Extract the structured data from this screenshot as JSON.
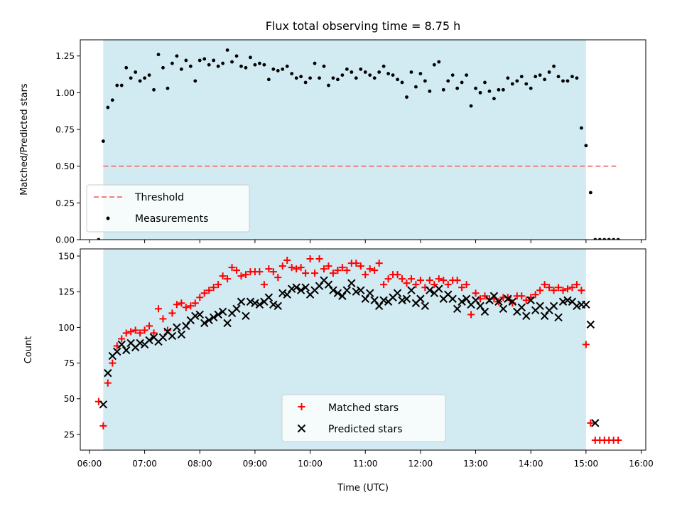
{
  "chart_data": [
    {
      "type": "scatter",
      "title": "Flux total observing time = 8.75 h",
      "xlabel": "",
      "ylabel": "Matched/Predicted stars",
      "xlim": [
        "05:50",
        "16:05"
      ],
      "ylim": [
        0,
        1.36
      ],
      "x_ticks": [
        "06:00",
        "07:00",
        "08:00",
        "09:00",
        "10:00",
        "11:00",
        "12:00",
        "13:00",
        "14:00",
        "15:00",
        "16:00"
      ],
      "y_ticks": [
        "0.00",
        "0.25",
        "0.50",
        "0.75",
        "1.00",
        "1.25"
      ],
      "shaded_span": [
        "06:15",
        "15:00"
      ],
      "shaded_color": "#add8e6",
      "legend_position": "lower-left",
      "threshold": {
        "name": "Threshold",
        "value": 0.5,
        "x_range": [
          "06:15",
          "15:35"
        ],
        "color": "#f08080",
        "style": "dashed"
      },
      "series": [
        {
          "name": "Measurements",
          "marker": "dot",
          "color": "#000000",
          "x": [
            "06:10",
            "06:15",
            "06:20",
            "06:25",
            "06:30",
            "06:35",
            "06:40",
            "06:45",
            "06:50",
            "06:55",
            "07:00",
            "07:05",
            "07:10",
            "07:15",
            "07:20",
            "07:25",
            "07:30",
            "07:35",
            "07:40",
            "07:45",
            "07:50",
            "07:55",
            "08:00",
            "08:05",
            "08:10",
            "08:15",
            "08:20",
            "08:25",
            "08:30",
            "08:35",
            "08:40",
            "08:45",
            "08:50",
            "08:55",
            "09:00",
            "09:05",
            "09:10",
            "09:15",
            "09:20",
            "09:25",
            "09:30",
            "09:35",
            "09:40",
            "09:45",
            "09:50",
            "09:55",
            "10:00",
            "10:05",
            "10:10",
            "10:15",
            "10:20",
            "10:25",
            "10:30",
            "10:35",
            "10:40",
            "10:45",
            "10:50",
            "10:55",
            "11:00",
            "11:05",
            "11:10",
            "11:15",
            "11:20",
            "11:25",
            "11:30",
            "11:35",
            "11:40",
            "11:45",
            "11:50",
            "11:55",
            "12:00",
            "12:05",
            "12:10",
            "12:15",
            "12:20",
            "12:25",
            "12:30",
            "12:35",
            "12:40",
            "12:45",
            "12:50",
            "12:55",
            "13:00",
            "13:05",
            "13:10",
            "13:15",
            "13:20",
            "13:25",
            "13:30",
            "13:35",
            "13:40",
            "13:45",
            "13:50",
            "13:55",
            "14:00",
            "14:05",
            "14:10",
            "14:15",
            "14:20",
            "14:25",
            "14:30",
            "14:35",
            "14:40",
            "14:45",
            "14:50",
            "14:55",
            "15:00",
            "15:05",
            "15:10",
            "15:15",
            "15:20",
            "15:25",
            "15:30",
            "15:35"
          ],
          "y": [
            0.0,
            0.67,
            0.9,
            0.95,
            1.05,
            1.05,
            1.17,
            1.1,
            1.14,
            1.08,
            1.1,
            1.12,
            1.02,
            1.26,
            1.17,
            1.03,
            1.2,
            1.25,
            1.16,
            1.22,
            1.18,
            1.08,
            1.22,
            1.23,
            1.19,
            1.22,
            1.18,
            1.2,
            1.29,
            1.21,
            1.25,
            1.18,
            1.17,
            1.24,
            1.19,
            1.2,
            1.19,
            1.09,
            1.16,
            1.15,
            1.16,
            1.18,
            1.13,
            1.1,
            1.11,
            1.07,
            1.1,
            1.2,
            1.1,
            1.18,
            1.05,
            1.1,
            1.09,
            1.12,
            1.16,
            1.14,
            1.1,
            1.16,
            1.14,
            1.12,
            1.1,
            1.14,
            1.18,
            1.13,
            1.12,
            1.09,
            1.07,
            0.97,
            1.14,
            1.04,
            1.13,
            1.08,
            1.01,
            1.19,
            1.21,
            1.02,
            1.08,
            1.12,
            1.03,
            1.07,
            1.12,
            0.91,
            1.03,
            1.0,
            1.07,
            1.01,
            0.96,
            1.02,
            1.02,
            1.1,
            1.06,
            1.08,
            1.11,
            1.06,
            1.03,
            1.11,
            1.12,
            1.09,
            1.14,
            1.18,
            1.11,
            1.08,
            1.08,
            1.11,
            1.1,
            0.76,
            0.64,
            0.32,
            0.0,
            0.0,
            0.0,
            0.0,
            0.0,
            0.0
          ]
        }
      ]
    },
    {
      "type": "scatter",
      "title": "",
      "xlabel": "Time (UTC)",
      "ylabel": "Count",
      "xlim": [
        "05:50",
        "16:05"
      ],
      "ylim": [
        14,
        155
      ],
      "x_ticks": [
        "06:00",
        "07:00",
        "08:00",
        "09:00",
        "10:00",
        "11:00",
        "12:00",
        "13:00",
        "14:00",
        "15:00",
        "16:00"
      ],
      "y_ticks": [
        "25",
        "50",
        "75",
        "100",
        "125",
        "150"
      ],
      "shaded_span": [
        "06:15",
        "15:00"
      ],
      "shaded_color": "#add8e6",
      "legend_position": "lower-center",
      "series": [
        {
          "name": "Matched stars",
          "marker": "plus",
          "color": "#ff0000",
          "x": [
            "06:10",
            "06:15",
            "06:20",
            "06:25",
            "06:30",
            "06:35",
            "06:40",
            "06:45",
            "06:50",
            "06:55",
            "07:00",
            "07:05",
            "07:10",
            "07:15",
            "07:20",
            "07:25",
            "07:30",
            "07:35",
            "07:40",
            "07:45",
            "07:50",
            "07:55",
            "08:00",
            "08:05",
            "08:10",
            "08:15",
            "08:20",
            "08:25",
            "08:30",
            "08:35",
            "08:40",
            "08:45",
            "08:50",
            "08:55",
            "09:00",
            "09:05",
            "09:10",
            "09:15",
            "09:20",
            "09:25",
            "09:30",
            "09:35",
            "09:40",
            "09:45",
            "09:50",
            "09:55",
            "10:00",
            "10:05",
            "10:10",
            "10:15",
            "10:20",
            "10:25",
            "10:30",
            "10:35",
            "10:40",
            "10:45",
            "10:50",
            "10:55",
            "11:00",
            "11:05",
            "11:10",
            "11:15",
            "11:20",
            "11:25",
            "11:30",
            "11:35",
            "11:40",
            "11:45",
            "11:50",
            "11:55",
            "12:00",
            "12:05",
            "12:10",
            "12:15",
            "12:20",
            "12:25",
            "12:30",
            "12:35",
            "12:40",
            "12:45",
            "12:50",
            "12:55",
            "13:00",
            "13:05",
            "13:10",
            "13:15",
            "13:20",
            "13:25",
            "13:30",
            "13:35",
            "13:40",
            "13:45",
            "13:50",
            "13:55",
            "14:00",
            "14:05",
            "14:10",
            "14:15",
            "14:20",
            "14:25",
            "14:30",
            "14:35",
            "14:40",
            "14:45",
            "14:50",
            "14:55",
            "15:00",
            "15:05",
            "15:10",
            "15:15",
            "15:20",
            "15:25",
            "15:30",
            "15:35"
          ],
          "y": [
            48,
            31,
            61,
            75,
            87,
            92,
            96,
            97,
            98,
            96,
            98,
            101,
            96,
            113,
            106,
            98,
            110,
            116,
            117,
            114,
            115,
            117,
            121,
            124,
            126,
            128,
            130,
            136,
            134,
            142,
            140,
            136,
            137,
            139,
            139,
            139,
            130,
            141,
            139,
            135,
            143,
            147,
            142,
            141,
            142,
            138,
            148,
            138,
            148,
            141,
            143,
            138,
            140,
            142,
            140,
            145,
            145,
            143,
            137,
            141,
            140,
            145,
            130,
            134,
            137,
            137,
            134,
            131,
            134,
            130,
            133,
            128,
            133,
            130,
            134,
            133,
            130,
            133,
            133,
            128,
            130,
            109,
            124,
            120,
            122,
            120,
            120,
            118,
            121,
            121,
            117,
            122,
            122,
            119,
            121,
            123,
            126,
            130,
            128,
            126,
            128,
            126,
            127,
            128,
            130,
            126,
            88,
            33,
            21,
            21,
            21,
            21,
            21,
            21
          ]
        },
        {
          "name": "Predicted stars",
          "marker": "x",
          "color": "#000000",
          "x": [
            "06:10",
            "06:15",
            "06:20",
            "06:25",
            "06:30",
            "06:35",
            "06:40",
            "06:45",
            "06:50",
            "06:55",
            "07:00",
            "07:05",
            "07:10",
            "07:15",
            "07:20",
            "07:25",
            "07:30",
            "07:35",
            "07:40",
            "07:45",
            "07:50",
            "07:55",
            "08:00",
            "08:05",
            "08:10",
            "08:15",
            "08:20",
            "08:25",
            "08:30",
            "08:35",
            "08:40",
            "08:45",
            "08:50",
            "08:55",
            "09:00",
            "09:05",
            "09:10",
            "09:15",
            "09:20",
            "09:25",
            "09:30",
            "09:35",
            "09:40",
            "09:45",
            "09:50",
            "09:55",
            "10:00",
            "10:05",
            "10:10",
            "10:15",
            "10:20",
            "10:25",
            "10:30",
            "10:35",
            "10:40",
            "10:45",
            "10:50",
            "10:55",
            "11:00",
            "11:05",
            "11:10",
            "11:15",
            "11:20",
            "11:25",
            "11:30",
            "11:35",
            "11:40",
            "11:45",
            "11:50",
            "11:55",
            "12:00",
            "12:05",
            "12:10",
            "12:15",
            "12:20",
            "12:25",
            "12:30",
            "12:35",
            "12:40",
            "12:45",
            "12:50",
            "12:55",
            "13:00",
            "13:05",
            "13:10",
            "13:15",
            "13:20",
            "13:25",
            "13:30",
            "13:35",
            "13:40",
            "13:45",
            "13:50",
            "13:55",
            "14:00",
            "14:05",
            "14:10",
            "14:15",
            "14:20",
            "14:25",
            "14:30",
            "14:35",
            "14:40",
            "14:45",
            "14:50",
            "14:55",
            "15:00",
            "15:05",
            "15:10",
            "15:15",
            "15:20",
            "15:25",
            "15:30",
            "15:35"
          ],
          "y": [
            null,
            46,
            68,
            80,
            83,
            88,
            84,
            89,
            86,
            89,
            88,
            91,
            93,
            90,
            93,
            97,
            94,
            100,
            95,
            101,
            105,
            108,
            109,
            103,
            105,
            107,
            109,
            111,
            103,
            110,
            113,
            118,
            108,
            118,
            117,
            116,
            118,
            121,
            116,
            115,
            124,
            123,
            127,
            128,
            126,
            128,
            123,
            126,
            129,
            133,
            130,
            126,
            124,
            122,
            126,
            131,
            125,
            126,
            120,
            124,
            119,
            115,
            119,
            118,
            121,
            124,
            119,
            120,
            126,
            117,
            120,
            115,
            126,
            124,
            127,
            120,
            123,
            120,
            113,
            118,
            120,
            116,
            119,
            115,
            111,
            119,
            122,
            118,
            113,
            120,
            118,
            111,
            114,
            108,
            119,
            112,
            115,
            108,
            112,
            115,
            107,
            118,
            119,
            118,
            115,
            116,
            116,
            102,
            33,
            null,
            null,
            null,
            null,
            null
          ]
        }
      ]
    }
  ]
}
